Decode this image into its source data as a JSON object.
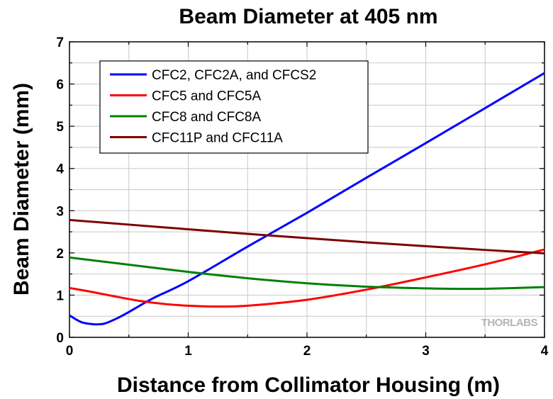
{
  "chart_data": {
    "type": "line",
    "title": "Beam Diameter at 405 nm",
    "xlabel": "Distance from Collimator Housing (m)",
    "ylabel": "Beam Diameter (mm)",
    "xlim": [
      0,
      4
    ],
    "ylim": [
      0,
      7
    ],
    "xticks": [
      "0",
      "1",
      "2",
      "3",
      "4"
    ],
    "yticks": [
      "0",
      "1",
      "2",
      "3",
      "4",
      "5",
      "6",
      "7"
    ],
    "grid": true,
    "legend_position": "top-left",
    "watermark": "THORLABS",
    "series": [
      {
        "name": "CFC2, CFC2A, and CFCS2",
        "color": "#0000ff",
        "x": [
          0,
          0.1,
          0.2,
          0.25,
          0.3,
          0.4,
          0.5,
          0.7,
          1.0,
          1.5,
          2.0,
          2.5,
          3.0,
          3.5,
          4.0
        ],
        "y": [
          0.52,
          0.36,
          0.31,
          0.31,
          0.33,
          0.45,
          0.6,
          0.92,
          1.33,
          2.15,
          2.95,
          3.78,
          4.6,
          5.43,
          6.26
        ]
      },
      {
        "name": "CFC5 and CFC5A",
        "color": "#ff0000",
        "x": [
          0,
          0.2,
          0.4,
          0.6,
          0.8,
          1.0,
          1.25,
          1.5,
          2.0,
          2.5,
          3.0,
          3.5,
          4.0
        ],
        "y": [
          1.17,
          1.07,
          0.96,
          0.86,
          0.79,
          0.75,
          0.73,
          0.75,
          0.89,
          1.13,
          1.42,
          1.73,
          2.08
        ]
      },
      {
        "name": "CFC8 and CFC8A",
        "color": "#008000",
        "x": [
          0,
          0.5,
          1.0,
          1.5,
          2.0,
          2.5,
          3.0,
          3.25,
          3.5,
          4.0
        ],
        "y": [
          1.89,
          1.72,
          1.55,
          1.4,
          1.28,
          1.2,
          1.16,
          1.15,
          1.15,
          1.19
        ]
      },
      {
        "name": "CFC11P and CFC11A",
        "color": "#800000",
        "x": [
          0,
          0.5,
          1.0,
          1.5,
          2.0,
          2.5,
          3.0,
          3.5,
          4.0
        ],
        "y": [
          2.78,
          2.67,
          2.56,
          2.45,
          2.35,
          2.25,
          2.16,
          2.07,
          1.99
        ]
      }
    ]
  }
}
